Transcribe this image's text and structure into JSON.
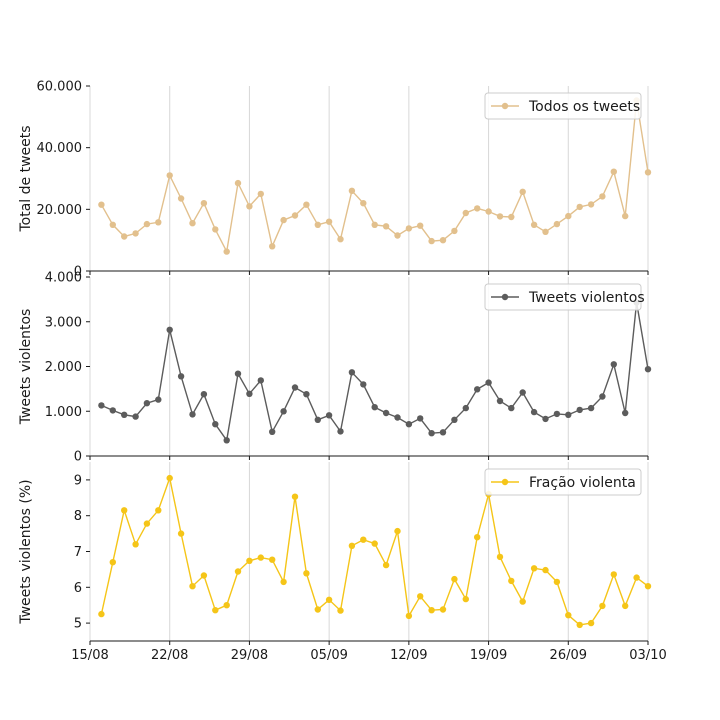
{
  "chart_data": [
    {
      "type": "line",
      "ylabel": "Total de tweets",
      "ylim": [
        0,
        60000
      ],
      "yticks": [
        0,
        20000,
        40000,
        60000
      ],
      "ytick_labels": [
        "0",
        "20.000",
        "40.000",
        "60.000"
      ],
      "legend_position": "top-right",
      "grid": "vertical",
      "series": [
        {
          "name": "Todos os tweets",
          "color": "#e2c08d",
          "x": [
            "16/08",
            "17/08",
            "18/08",
            "19/08",
            "20/08",
            "21/08",
            "22/08",
            "23/08",
            "24/08",
            "25/08",
            "26/08",
            "27/08",
            "28/08",
            "29/08",
            "30/08",
            "31/08",
            "01/09",
            "02/09",
            "03/09",
            "04/09",
            "05/09",
            "06/09",
            "07/09",
            "08/09",
            "09/09",
            "10/09",
            "11/09",
            "12/09",
            "13/09",
            "14/09",
            "15/09",
            "16/09",
            "17/09",
            "18/09",
            "19/09",
            "20/09",
            "21/09",
            "22/09",
            "23/09",
            "24/09",
            "25/09",
            "26/09",
            "27/09",
            "28/09",
            "29/09",
            "30/09",
            "01/10",
            "02/10",
            "03/10"
          ],
          "values": [
            21500,
            15000,
            11200,
            12200,
            15200,
            15800,
            31000,
            23500,
            15500,
            22000,
            13500,
            6300,
            28500,
            21000,
            25000,
            8000,
            16500,
            18000,
            21500,
            15000,
            16000,
            10300,
            26000,
            22000,
            15000,
            14500,
            11500,
            13800,
            14700,
            9700,
            10000,
            13000,
            18800,
            20300,
            19300,
            17700,
            17500,
            25700,
            15000,
            12700,
            15200,
            17800,
            20800,
            21600,
            24200,
            32200,
            17800,
            55300,
            32000
          ]
        }
      ]
    },
    {
      "type": "line",
      "ylabel": "Tweets violentos",
      "ylim": [
        0,
        4000
      ],
      "yticks": [
        0,
        1000,
        2000,
        3000,
        4000
      ],
      "ytick_labels": [
        "0",
        "1.000",
        "2.000",
        "3.000",
        "4.000"
      ],
      "legend_position": "top-right",
      "grid": "vertical",
      "series": [
        {
          "name": "Tweets violentos",
          "color": "#5c5c5c",
          "x": [
            "16/08",
            "17/08",
            "18/08",
            "19/08",
            "20/08",
            "21/08",
            "22/08",
            "23/08",
            "24/08",
            "25/08",
            "26/08",
            "27/08",
            "28/08",
            "29/08",
            "30/08",
            "31/08",
            "01/09",
            "02/09",
            "03/09",
            "04/09",
            "05/09",
            "06/09",
            "07/09",
            "08/09",
            "09/09",
            "10/09",
            "11/09",
            "12/09",
            "13/09",
            "14/09",
            "15/09",
            "16/09",
            "17/09",
            "18/09",
            "19/09",
            "20/09",
            "21/09",
            "22/09",
            "23/09",
            "24/09",
            "25/09",
            "26/09",
            "27/09",
            "28/09",
            "29/09",
            "30/09",
            "01/10",
            "02/10",
            "03/10"
          ],
          "values": [
            1130,
            1020,
            920,
            880,
            1180,
            1260,
            2820,
            1780,
            930,
            1380,
            710,
            350,
            1840,
            1390,
            1690,
            540,
            1000,
            1530,
            1380,
            810,
            910,
            550,
            1870,
            1600,
            1090,
            960,
            860,
            710,
            840,
            510,
            530,
            810,
            1070,
            1490,
            1640,
            1230,
            1070,
            1420,
            980,
            830,
            940,
            920,
            1030,
            1070,
            1330,
            2050,
            960,
            3430,
            1940
          ]
        }
      ]
    },
    {
      "type": "line",
      "ylabel": "Tweets violentos (%)",
      "ylim": [
        4.5,
        9.5
      ],
      "yticks": [
        5,
        6,
        7,
        8,
        9
      ],
      "ytick_labels": [
        "5",
        "6",
        "7",
        "8",
        "9"
      ],
      "legend_position": "top-right",
      "grid": "vertical",
      "series": [
        {
          "name": "Fração violenta",
          "color": "#f5c518",
          "x": [
            "16/08",
            "17/08",
            "18/08",
            "19/08",
            "20/08",
            "21/08",
            "22/08",
            "23/08",
            "24/08",
            "25/08",
            "26/08",
            "27/08",
            "28/08",
            "29/08",
            "30/08",
            "31/08",
            "01/09",
            "02/09",
            "03/09",
            "04/09",
            "05/09",
            "06/09",
            "07/09",
            "08/09",
            "09/09",
            "10/09",
            "11/09",
            "12/09",
            "13/09",
            "14/09",
            "15/09",
            "16/09",
            "17/09",
            "18/09",
            "19/09",
            "20/09",
            "21/09",
            "22/09",
            "23/09",
            "24/09",
            "25/09",
            "26/09",
            "27/09",
            "28/09",
            "29/09",
            "30/09",
            "01/10",
            "02/10",
            "03/10"
          ],
          "values": [
            5.25,
            6.7,
            8.15,
            7.2,
            7.78,
            8.15,
            9.05,
            7.5,
            6.03,
            6.33,
            5.36,
            5.5,
            6.44,
            6.74,
            6.83,
            6.77,
            6.15,
            8.53,
            6.39,
            5.38,
            5.65,
            5.35,
            7.16,
            7.33,
            7.22,
            6.62,
            7.57,
            5.2,
            5.75,
            5.36,
            5.38,
            6.23,
            5.67,
            7.4,
            8.6,
            6.85,
            6.18,
            5.6,
            6.53,
            6.48,
            6.15,
            5.22,
            4.95,
            5.0,
            5.48,
            6.36,
            5.48,
            6.27,
            6.03
          ]
        }
      ]
    }
  ],
  "xaxis": {
    "ticks": [
      "15/08",
      "22/08",
      "29/08",
      "05/09",
      "12/09",
      "19/09",
      "26/09",
      "03/10"
    ]
  },
  "colors": {
    "grid": "#d8d8d8",
    "axis": "#1a1a1a"
  }
}
